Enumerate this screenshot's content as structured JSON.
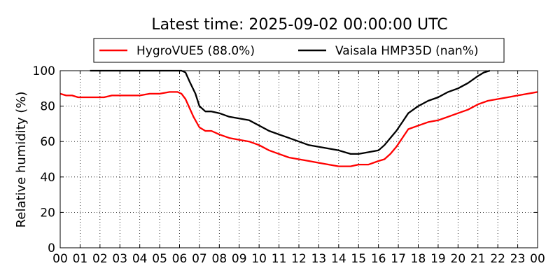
{
  "chart_data": {
    "type": "line",
    "title": "Latest time: 2025-09-02 00:00:00 UTC",
    "ylabel": "Relative humidity (%)",
    "xlabel": "",
    "xlim": [
      0,
      24
    ],
    "ylim": [
      0,
      100
    ],
    "grid": true,
    "legend_position": "top",
    "x_tick_labels": [
      "00",
      "01",
      "02",
      "03",
      "04",
      "05",
      "06",
      "07",
      "08",
      "09",
      "10",
      "11",
      "12",
      "13",
      "14",
      "15",
      "16",
      "17",
      "18",
      "19",
      "20",
      "21",
      "22",
      "23",
      "00"
    ],
    "y_tick_labels": [
      "0",
      "20",
      "40",
      "60",
      "80",
      "100"
    ],
    "series": [
      {
        "name": "HygroVUE5 (88.0%)",
        "color": "#ff0000",
        "x": [
          0,
          0.3,
          0.6,
          0.9,
          1.2,
          1.5,
          1.8,
          2.2,
          2.6,
          3.0,
          3.5,
          4.0,
          4.5,
          5.0,
          5.5,
          5.9,
          6.1,
          6.3,
          6.5,
          6.7,
          7.0,
          7.3,
          7.6,
          8.0,
          8.5,
          9.0,
          9.5,
          10.0,
          10.5,
          11.0,
          11.5,
          12.0,
          12.5,
          13.0,
          13.5,
          14.0,
          14.3,
          14.6,
          15.0,
          15.5,
          16.0,
          16.3,
          16.6,
          16.9,
          17.2,
          17.5,
          18.0,
          18.5,
          19.0,
          19.5,
          20.0,
          20.5,
          21.0,
          21.5,
          22.0,
          22.5,
          23.0,
          23.5,
          24.0
        ],
        "y": [
          87,
          86,
          86,
          85,
          85,
          85,
          85,
          85,
          86,
          86,
          86,
          86,
          87,
          87,
          88,
          88,
          87,
          84,
          79,
          74,
          68,
          66,
          66,
          64,
          62,
          61,
          60,
          58,
          55,
          53,
          51,
          50,
          49,
          48,
          47,
          46,
          46,
          46,
          47,
          47,
          49,
          50,
          53,
          57,
          62,
          67,
          69,
          71,
          72,
          74,
          76,
          78,
          81,
          83,
          84,
          85,
          86,
          87,
          88
        ]
      },
      {
        "name": "Vaisala HMP35D (nan%)",
        "color": "#000000",
        "x": [
          1.5,
          1.6,
          6.1,
          6.3,
          6.5,
          6.8,
          7.0,
          7.3,
          7.6,
          8.0,
          8.5,
          9.0,
          9.5,
          10.0,
          10.5,
          11.0,
          11.5,
          12.0,
          12.5,
          13.0,
          13.5,
          14.0,
          14.3,
          14.6,
          15.0,
          15.5,
          16.0,
          16.3,
          16.6,
          16.9,
          17.2,
          17.5,
          18.0,
          18.5,
          19.0,
          19.5,
          20.0,
          20.5,
          21.0,
          21.3,
          21.6
        ],
        "y": [
          100,
          100,
          100,
          99,
          94,
          87,
          80,
          77,
          77,
          76,
          74,
          73,
          72,
          69,
          66,
          64,
          62,
          60,
          58,
          57,
          56,
          55,
          54,
          53,
          53,
          54,
          55,
          58,
          62,
          66,
          71,
          76,
          80,
          83,
          85,
          88,
          90,
          93,
          97,
          99,
          100
        ]
      }
    ]
  }
}
